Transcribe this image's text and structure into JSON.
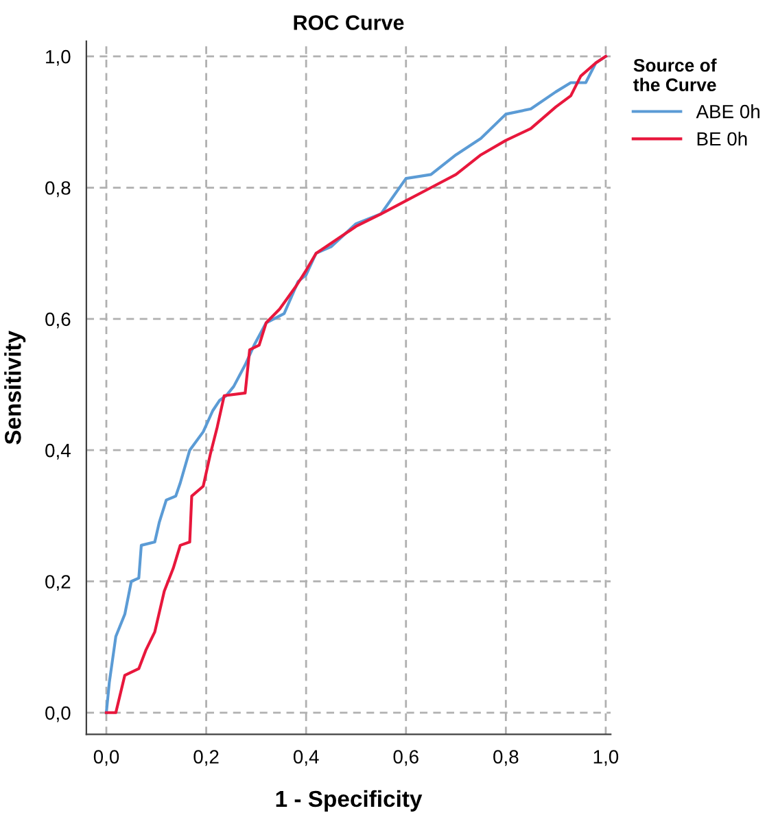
{
  "chart_data": {
    "type": "line",
    "title": "ROC Curve",
    "xlabel": "1 - Specificity",
    "ylabel": "Sensitivity",
    "legend_title": "Source of the Curve",
    "legend": "right",
    "grid": true,
    "line_style": "solid",
    "marker": "none",
    "xlim": [
      -0.04,
      1.01
    ],
    "ylim": [
      -0.033,
      1.023
    ],
    "xticks": [
      {
        "value": 0,
        "label": "0,0"
      },
      {
        "value": 0.2,
        "label": "0,2"
      },
      {
        "value": 0.4,
        "label": "0,4"
      },
      {
        "value": 0.6,
        "label": "0,6"
      },
      {
        "value": 0.8,
        "label": "0,8"
      },
      {
        "value": 1,
        "label": "1,0"
      }
    ],
    "yticks": [
      {
        "value": 0,
        "label": "0,0"
      },
      {
        "value": 0.2,
        "label": "0,2"
      },
      {
        "value": 0.4,
        "label": "0,4"
      },
      {
        "value": 0.6,
        "label": "0,6"
      },
      {
        "value": 0.8,
        "label": "0,8"
      },
      {
        "value": 1,
        "label": "1,0"
      }
    ],
    "series": [
      {
        "name": "ABE 0h",
        "color": "#5b9bd5",
        "x": [
          0,
          0.006,
          0.019,
          0.037,
          0.05,
          0.065,
          0.07,
          0.097,
          0.106,
          0.12,
          0.139,
          0.148,
          0.167,
          0.194,
          0.213,
          0.227,
          0.24,
          0.255,
          0.278,
          0.296,
          0.32,
          0.356,
          0.384,
          0.4,
          0.42,
          0.45,
          0.5,
          0.55,
          0.6,
          0.65,
          0.7,
          0.75,
          0.8,
          0.85,
          0.9,
          0.93,
          0.96,
          0.98,
          1
        ],
        "values": [
          0,
          0.046,
          0.116,
          0.15,
          0.2,
          0.205,
          0.255,
          0.26,
          0.29,
          0.324,
          0.33,
          0.35,
          0.4,
          0.428,
          0.46,
          0.476,
          0.483,
          0.497,
          0.53,
          0.56,
          0.594,
          0.608,
          0.657,
          0.667,
          0.7,
          0.71,
          0.745,
          0.76,
          0.814,
          0.82,
          0.85,
          0.875,
          0.912,
          0.92,
          0.946,
          0.96,
          0.96,
          0.99,
          1
        ]
      },
      {
        "name": "BE 0h",
        "color": "#e8173c",
        "x": [
          0,
          0.019,
          0.037,
          0.065,
          0.079,
          0.097,
          0.116,
          0.134,
          0.148,
          0.167,
          0.171,
          0.194,
          0.208,
          0.222,
          0.236,
          0.278,
          0.287,
          0.306,
          0.32,
          0.347,
          0.38,
          0.4,
          0.42,
          0.44,
          0.5,
          0.55,
          0.6,
          0.65,
          0.7,
          0.75,
          0.8,
          0.85,
          0.9,
          0.93,
          0.95,
          0.98,
          1
        ],
        "values": [
          0,
          0,
          0.057,
          0.067,
          0.095,
          0.123,
          0.185,
          0.22,
          0.255,
          0.26,
          0.33,
          0.345,
          0.393,
          0.435,
          0.483,
          0.487,
          0.553,
          0.56,
          0.594,
          0.615,
          0.65,
          0.674,
          0.7,
          0.71,
          0.741,
          0.76,
          0.78,
          0.8,
          0.82,
          0.85,
          0.872,
          0.89,
          0.923,
          0.94,
          0.97,
          0.99,
          1
        ]
      }
    ]
  }
}
